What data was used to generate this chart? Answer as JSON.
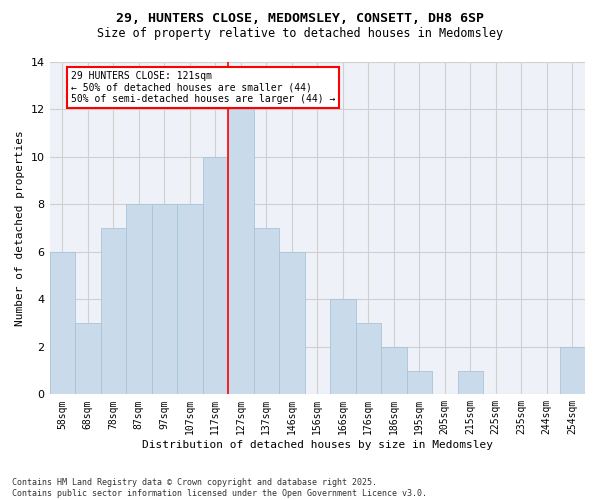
{
  "title_line1": "29, HUNTERS CLOSE, MEDOMSLEY, CONSETT, DH8 6SP",
  "title_line2": "Size of property relative to detached houses in Medomsley",
  "xlabel": "Distribution of detached houses by size in Medomsley",
  "ylabel": "Number of detached properties",
  "bin_labels": [
    "58sqm",
    "68sqm",
    "78sqm",
    "87sqm",
    "97sqm",
    "107sqm",
    "117sqm",
    "127sqm",
    "137sqm",
    "146sqm",
    "156sqm",
    "166sqm",
    "176sqm",
    "186sqm",
    "195sqm",
    "205sqm",
    "215sqm",
    "225sqm",
    "235sqm",
    "244sqm",
    "254sqm"
  ],
  "bar_values": [
    6,
    3,
    7,
    8,
    8,
    8,
    10,
    12,
    7,
    6,
    0,
    4,
    3,
    2,
    1,
    0,
    1,
    0,
    0,
    0,
    2
  ],
  "bar_color": "#c9daea",
  "bar_edgecolor": "#a8c4d8",
  "vline_x": 6.5,
  "vline_color": "red",
  "annotation_text": "29 HUNTERS CLOSE: 121sqm\n← 50% of detached houses are smaller (44)\n50% of semi-detached houses are larger (44) →",
  "annotation_box_color": "white",
  "annotation_box_edgecolor": "red",
  "ylim": [
    0,
    14
  ],
  "yticks": [
    0,
    2,
    4,
    6,
    8,
    10,
    12,
    14
  ],
  "grid_color": "#d0d0d0",
  "bg_color": "#eef2f8",
  "plot_bg_color": "#eef2f8",
  "footer": "Contains HM Land Registry data © Crown copyright and database right 2025.\nContains public sector information licensed under the Open Government Licence v3.0."
}
